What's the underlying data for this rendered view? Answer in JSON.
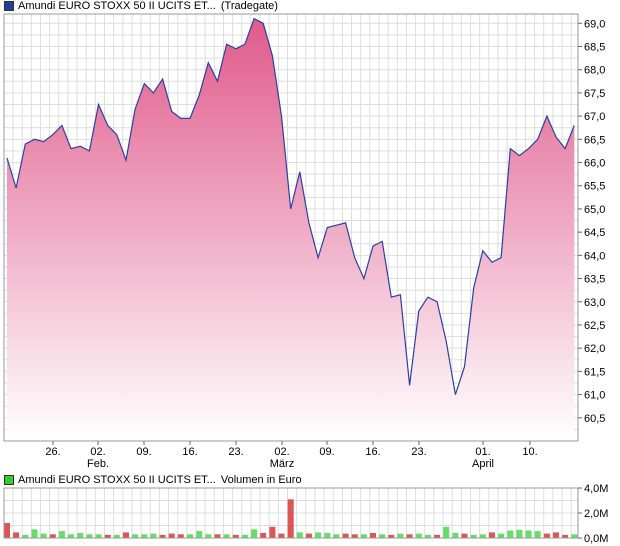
{
  "legend_price": {
    "name": "Amundi EURO STOXX 50 II UCITS ET...",
    "source": "(Tradegate)",
    "color": "#1f3f99"
  },
  "legend_volume": {
    "name": "Amundi EURO STOXX 50 II UCITS ET...",
    "source": "Volumen in Euro",
    "color": "#33cc33"
  },
  "colors": {
    "line": "#2c3fa5",
    "fill_top": "#e05a8a",
    "fill_bottom": "#ffffff",
    "grid": "#dddddd",
    "vol_up": "#66dd66",
    "vol_down": "#dd5555"
  },
  "chart_data": [
    {
      "type": "area",
      "series": [
        {
          "values": [
            66.1,
            65.45,
            66.4,
            66.5,
            66.45,
            66.6,
            66.8,
            66.3,
            66.35,
            66.25,
            67.25,
            66.8,
            66.6,
            66.05,
            67.15,
            67.7,
            67.5,
            67.8,
            67.1,
            66.95,
            66.95,
            67.45,
            68.15,
            67.75,
            68.55,
            68.45,
            68.55,
            69.1,
            69.0,
            68.3,
            67.0,
            65.0,
            65.8,
            64.7,
            63.95,
            64.6,
            64.65,
            64.7,
            63.95,
            63.5,
            64.2,
            64.3,
            63.1,
            63.15,
            61.2,
            62.8,
            63.1,
            63.0,
            62.15,
            61.0,
            61.6,
            63.3,
            64.1,
            63.85,
            63.95,
            66.3,
            66.15,
            66.3,
            66.5,
            67.0,
            66.55,
            66.3,
            66.8
          ]
        }
      ],
      "x_ticks": [
        "26.",
        "02.",
        "09.",
        "16.",
        "23.",
        "02.",
        "09.",
        "16.",
        "23.",
        "01.",
        "10."
      ],
      "month_labels": [
        "Feb.",
        "März",
        "April"
      ],
      "y_ticks": [
        "69,0",
        "68,5",
        "68,0",
        "67,5",
        "67,0",
        "66,5",
        "66,0",
        "65,5",
        "65,0",
        "64,5",
        "64,0",
        "63,5",
        "63,0",
        "62,5",
        "62,0",
        "61,5",
        "61,0",
        "60,5"
      ],
      "ylim": [
        60.0,
        69.2
      ],
      "grid": true
    },
    {
      "type": "bar",
      "values": [
        1.2,
        0.45,
        0.25,
        0.7,
        0.35,
        0.3,
        0.55,
        0.3,
        0.4,
        0.3,
        0.3,
        0.25,
        0.25,
        0.45,
        0.3,
        0.3,
        0.35,
        0.25,
        0.35,
        0.3,
        0.3,
        0.55,
        0.3,
        0.3,
        0.3,
        0.25,
        0.25,
        0.7,
        0.4,
        0.9,
        0.35,
        3.1,
        0.45,
        0.35,
        0.45,
        0.4,
        0.3,
        0.35,
        0.3,
        0.3,
        0.4,
        0.3,
        0.25,
        0.35,
        0.3,
        0.35,
        0.25,
        0.25,
        0.9,
        0.4,
        0.35,
        0.25,
        0.3,
        0.45,
        0.35,
        0.6,
        0.65,
        0.6,
        0.55,
        0.35,
        0.45,
        0.25,
        0.3
      ],
      "colors": [
        "r",
        "r",
        "g",
        "g",
        "g",
        "r",
        "g",
        "g",
        "g",
        "g",
        "g",
        "r",
        "g",
        "r",
        "g",
        "g",
        "g",
        "r",
        "r",
        "r",
        "g",
        "g",
        "g",
        "r",
        "g",
        "r",
        "g",
        "g",
        "r",
        "r",
        "r",
        "r",
        "g",
        "r",
        "g",
        "g",
        "g",
        "r",
        "r",
        "g",
        "r",
        "g",
        "r",
        "g",
        "r",
        "g",
        "g",
        "r",
        "g",
        "g",
        "r",
        "g",
        "g",
        "r",
        "g",
        "g",
        "g",
        "g",
        "g",
        "r",
        "r",
        "r",
        "g"
      ],
      "y_ticks": [
        "4,0M",
        "2,0M",
        "0,0M"
      ],
      "ylim": [
        0,
        4.0
      ]
    }
  ]
}
